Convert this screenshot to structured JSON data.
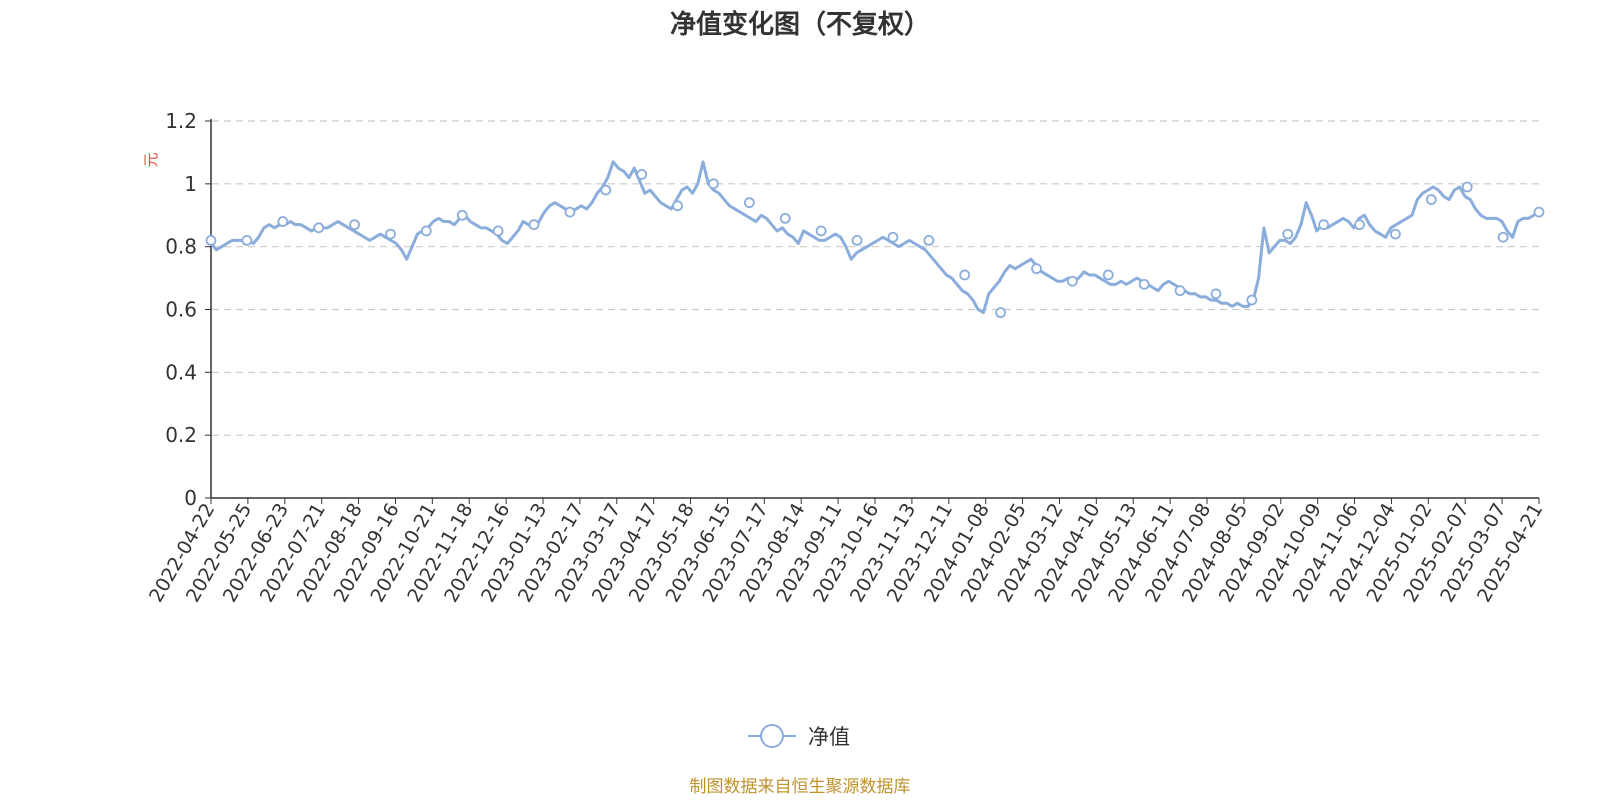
{
  "chart_data": {
    "type": "line",
    "title": "净值变化图（不复权）",
    "ylabel": "元",
    "ylim": [
      0,
      1.2
    ],
    "yticks": [
      0,
      0.2,
      0.4,
      0.6,
      0.8,
      1,
      1.2
    ],
    "y_tick_labels": [
      "0",
      "0.2",
      "0.4",
      "0.6",
      "0.8",
      "1",
      "1.2"
    ],
    "grid": true,
    "legend_position": "bottom-center",
    "x_tick_labels": [
      "2022-04-22",
      "2022-05-25",
      "2022-06-23",
      "2022-07-21",
      "2022-08-18",
      "2022-09-16",
      "2022-10-21",
      "2022-11-18",
      "2022-12-16",
      "2023-01-13",
      "2023-02-17",
      "2023-03-17",
      "2023-04-17",
      "2023-05-18",
      "2023-06-15",
      "2023-07-17",
      "2023-08-14",
      "2023-09-11",
      "2023-10-16",
      "2023-11-13",
      "2023-12-11",
      "2024-01-08",
      "2024-02-05",
      "2024-03-12",
      "2024-04-10",
      "2024-05-13",
      "2024-06-11",
      "2024-07-08",
      "2024-08-05",
      "2024-09-02",
      "2024-10-09",
      "2024-11-06",
      "2024-12-04",
      "2025-01-02",
      "2025-02-07",
      "2025-03-07",
      "2025-04-21"
    ],
    "series": [
      {
        "name": "净值",
        "color": "#8aaddc",
        "values": [
          0.81,
          0.79,
          0.8,
          0.81,
          0.82,
          0.82,
          0.82,
          0.82,
          0.81,
          0.83,
          0.86,
          0.87,
          0.86,
          0.87,
          0.87,
          0.88,
          0.87,
          0.87,
          0.86,
          0.85,
          0.86,
          0.86,
          0.86,
          0.87,
          0.88,
          0.87,
          0.86,
          0.85,
          0.84,
          0.83,
          0.82,
          0.83,
          0.84,
          0.83,
          0.82,
          0.81,
          0.79,
          0.76,
          0.8,
          0.84,
          0.85,
          0.86,
          0.88,
          0.89,
          0.88,
          0.88,
          0.87,
          0.89,
          0.9,
          0.88,
          0.87,
          0.86,
          0.86,
          0.85,
          0.84,
          0.82,
          0.81,
          0.83,
          0.85,
          0.88,
          0.87,
          0.86,
          0.88,
          0.91,
          0.93,
          0.94,
          0.93,
          0.92,
          0.91,
          0.92,
          0.93,
          0.92,
          0.94,
          0.97,
          0.99,
          1.02,
          1.07,
          1.05,
          1.04,
          1.02,
          1.05,
          1.01,
          0.97,
          0.98,
          0.96,
          0.94,
          0.93,
          0.92,
          0.95,
          0.98,
          0.99,
          0.97,
          1.0,
          1.07,
          1.0,
          0.98,
          0.97,
          0.95,
          0.93,
          0.92,
          0.91,
          0.9,
          0.89,
          0.88,
          0.9,
          0.89,
          0.87,
          0.85,
          0.86,
          0.84,
          0.83,
          0.81,
          0.85,
          0.84,
          0.83,
          0.82,
          0.82,
          0.83,
          0.84,
          0.83,
          0.8,
          0.76,
          0.78,
          0.79,
          0.8,
          0.81,
          0.82,
          0.83,
          0.82,
          0.81,
          0.8,
          0.81,
          0.82,
          0.81,
          0.8,
          0.79,
          0.77,
          0.75,
          0.73,
          0.71,
          0.7,
          0.68,
          0.66,
          0.65,
          0.63,
          0.6,
          0.59,
          0.65,
          0.67,
          0.69,
          0.72,
          0.74,
          0.73,
          0.74,
          0.75,
          0.76,
          0.74,
          0.72,
          0.71,
          0.7,
          0.69,
          0.69,
          0.7,
          0.69,
          0.7,
          0.72,
          0.71,
          0.71,
          0.7,
          0.69,
          0.68,
          0.68,
          0.69,
          0.68,
          0.69,
          0.7,
          0.69,
          0.68,
          0.67,
          0.66,
          0.68,
          0.69,
          0.68,
          0.67,
          0.66,
          0.65,
          0.65,
          0.64,
          0.64,
          0.63,
          0.63,
          0.62,
          0.62,
          0.61,
          0.62,
          0.61,
          0.61,
          0.63,
          0.7,
          0.86,
          0.78,
          0.8,
          0.82,
          0.82,
          0.81,
          0.83,
          0.87,
          0.94,
          0.9,
          0.85,
          0.87,
          0.86,
          0.87,
          0.88,
          0.89,
          0.88,
          0.86,
          0.89,
          0.9,
          0.87,
          0.85,
          0.84,
          0.83,
          0.86,
          0.87,
          0.88,
          0.89,
          0.9,
          0.95,
          0.97,
          0.98,
          0.99,
          0.98,
          0.96,
          0.95,
          0.98,
          0.99,
          0.96,
          0.95,
          0.92,
          0.9,
          0.89,
          0.89,
          0.89,
          0.88,
          0.85,
          0.83,
          0.88,
          0.89,
          0.89,
          0.9,
          0.91
        ]
      }
    ],
    "marker_values": [
      0.82,
      0.82,
      0.88,
      0.86,
      0.87,
      0.84,
      0.85,
      0.9,
      0.85,
      0.87,
      0.91,
      0.98,
      1.03,
      0.93,
      1.0,
      0.94,
      0.89,
      0.85,
      0.82,
      0.83,
      0.82,
      0.71,
      0.59,
      0.73,
      0.69,
      0.71,
      0.68,
      0.66,
      0.65,
      0.63,
      0.84,
      0.87,
      0.87,
      0.84,
      0.95,
      0.99,
      0.83,
      0.91
    ]
  },
  "footer": {
    "legend_label": "净值",
    "source": "制图数据来自恒生聚源数据库"
  }
}
